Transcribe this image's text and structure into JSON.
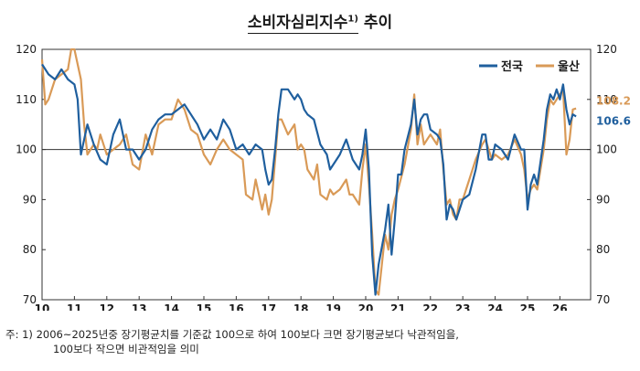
{
  "title": {
    "main": "소비자심리지수",
    "sup": "1)",
    "rest": "추이"
  },
  "footnote": {
    "line1": "주: 1) 2006~2025년중 장기평균치를 기준값 100으로 하여 100보다 크면 장기평균보다 낙관적임을,",
    "line2": "100보다 작으면 비관적임을 의미"
  },
  "chart_data": {
    "type": "line",
    "xlim": [
      2010,
      2026.5
    ],
    "ylim": [
      70,
      120
    ],
    "y_ticks": [
      70,
      80,
      90,
      100,
      110,
      120
    ],
    "x_ticks": [
      {
        "x": 2010,
        "label": "10"
      },
      {
        "x": 2011,
        "label": "11"
      },
      {
        "x": 2012,
        "label": "12"
      },
      {
        "x": 2013,
        "label": "13"
      },
      {
        "x": 2014,
        "label": "14"
      },
      {
        "x": 2015,
        "label": "15"
      },
      {
        "x": 2016,
        "label": "16"
      },
      {
        "x": 2017,
        "label": "17"
      },
      {
        "x": 2018,
        "label": "18"
      },
      {
        "x": 2019,
        "label": "19"
      },
      {
        "x": 2020,
        "label": "20"
      },
      {
        "x": 2021,
        "label": "21"
      },
      {
        "x": 2022,
        "label": "22"
      },
      {
        "x": 2023,
        "label": "23"
      },
      {
        "x": 2024,
        "label": "24"
      },
      {
        "x": 2025,
        "label": "25"
      },
      {
        "x": 2026,
        "label": "26"
      }
    ],
    "reference_line": 100,
    "legend_position": "top-right",
    "series": [
      {
        "name": "전국",
        "color": "#1f5f9e",
        "end_label": "106.6",
        "points": [
          [
            2010.0,
            117
          ],
          [
            2010.2,
            115
          ],
          [
            2010.4,
            114
          ],
          [
            2010.6,
            116
          ],
          [
            2010.8,
            114
          ],
          [
            2011.0,
            113
          ],
          [
            2011.1,
            110
          ],
          [
            2011.2,
            99
          ],
          [
            2011.4,
            105
          ],
          [
            2011.6,
            101
          ],
          [
            2011.8,
            98
          ],
          [
            2012.0,
            97
          ],
          [
            2012.2,
            103
          ],
          [
            2012.4,
            106
          ],
          [
            2012.6,
            100
          ],
          [
            2012.8,
            100
          ],
          [
            2013.0,
            98
          ],
          [
            2013.2,
            100
          ],
          [
            2013.4,
            104
          ],
          [
            2013.6,
            106
          ],
          [
            2013.8,
            107
          ],
          [
            2014.0,
            107
          ],
          [
            2014.2,
            108
          ],
          [
            2014.4,
            109
          ],
          [
            2014.6,
            107
          ],
          [
            2014.8,
            105
          ],
          [
            2015.0,
            102
          ],
          [
            2015.2,
            104
          ],
          [
            2015.4,
            102
          ],
          [
            2015.6,
            106
          ],
          [
            2015.8,
            104
          ],
          [
            2016.0,
            100
          ],
          [
            2016.2,
            101
          ],
          [
            2016.4,
            99
          ],
          [
            2016.6,
            101
          ],
          [
            2016.8,
            100
          ],
          [
            2016.9,
            96
          ],
          [
            2017.0,
            93
          ],
          [
            2017.1,
            94
          ],
          [
            2017.2,
            100
          ],
          [
            2017.3,
            107
          ],
          [
            2017.4,
            112
          ],
          [
            2017.6,
            112
          ],
          [
            2017.8,
            110
          ],
          [
            2017.9,
            111
          ],
          [
            2018.0,
            110
          ],
          [
            2018.1,
            108
          ],
          [
            2018.2,
            107
          ],
          [
            2018.4,
            106
          ],
          [
            2018.6,
            101
          ],
          [
            2018.8,
            99
          ],
          [
            2018.9,
            96
          ],
          [
            2019.0,
            97
          ],
          [
            2019.2,
            99
          ],
          [
            2019.4,
            102
          ],
          [
            2019.6,
            98
          ],
          [
            2019.8,
            96
          ],
          [
            2019.9,
            99
          ],
          [
            2020.0,
            104
          ],
          [
            2020.1,
            96
          ],
          [
            2020.2,
            79
          ],
          [
            2020.3,
            71
          ],
          [
            2020.4,
            77
          ],
          [
            2020.6,
            84
          ],
          [
            2020.7,
            89
          ],
          [
            2020.8,
            79
          ],
          [
            2020.9,
            86
          ],
          [
            2021.0,
            95
          ],
          [
            2021.1,
            95
          ],
          [
            2021.2,
            100
          ],
          [
            2021.4,
            105
          ],
          [
            2021.5,
            110
          ],
          [
            2021.6,
            103
          ],
          [
            2021.7,
            106
          ],
          [
            2021.8,
            107
          ],
          [
            2021.9,
            107
          ],
          [
            2022.0,
            104
          ],
          [
            2022.2,
            103
          ],
          [
            2022.3,
            102
          ],
          [
            2022.4,
            97
          ],
          [
            2022.5,
            86
          ],
          [
            2022.6,
            89
          ],
          [
            2022.7,
            88
          ],
          [
            2022.8,
            86
          ],
          [
            2022.9,
            88
          ],
          [
            2023.0,
            90
          ],
          [
            2023.2,
            91
          ],
          [
            2023.4,
            96
          ],
          [
            2023.6,
            103
          ],
          [
            2023.7,
            103
          ],
          [
            2023.8,
            98
          ],
          [
            2023.9,
            98
          ],
          [
            2024.0,
            101
          ],
          [
            2024.2,
            100
          ],
          [
            2024.4,
            98
          ],
          [
            2024.6,
            103
          ],
          [
            2024.8,
            100
          ],
          [
            2024.9,
            100
          ],
          [
            2025.0,
            88
          ],
          [
            2025.1,
            93
          ],
          [
            2025.2,
            95
          ],
          [
            2025.3,
            93
          ],
          [
            2025.5,
            102
          ],
          [
            2025.6,
            108
          ],
          [
            2025.7,
            111
          ],
          [
            2025.8,
            110
          ],
          [
            2025.9,
            112
          ],
          [
            2026.0,
            110
          ],
          [
            2026.1,
            113
          ],
          [
            2026.2,
            108
          ],
          [
            2026.3,
            105
          ],
          [
            2026.4,
            107
          ],
          [
            2026.5,
            106.6
          ]
        ]
      },
      {
        "name": "울산",
        "color": "#d99a57",
        "end_label": "108.2",
        "points": [
          [
            2010.0,
            118
          ],
          [
            2010.1,
            109
          ],
          [
            2010.2,
            110
          ],
          [
            2010.4,
            114
          ],
          [
            2010.6,
            115
          ],
          [
            2010.8,
            116
          ],
          [
            2010.9,
            120
          ],
          [
            2011.0,
            120
          ],
          [
            2011.2,
            114
          ],
          [
            2011.3,
            105
          ],
          [
            2011.4,
            99
          ],
          [
            2011.6,
            101
          ],
          [
            2011.7,
            100
          ],
          [
            2011.8,
            103
          ],
          [
            2012.0,
            99
          ],
          [
            2012.2,
            100
          ],
          [
            2012.4,
            101
          ],
          [
            2012.6,
            103
          ],
          [
            2012.8,
            97
          ],
          [
            2013.0,
            96
          ],
          [
            2013.2,
            103
          ],
          [
            2013.4,
            99
          ],
          [
            2013.6,
            105
          ],
          [
            2013.8,
            106
          ],
          [
            2014.0,
            106
          ],
          [
            2014.2,
            110
          ],
          [
            2014.4,
            108
          ],
          [
            2014.6,
            104
          ],
          [
            2014.8,
            103
          ],
          [
            2015.0,
            99
          ],
          [
            2015.2,
            97
          ],
          [
            2015.4,
            100
          ],
          [
            2015.6,
            102
          ],
          [
            2015.8,
            100
          ],
          [
            2016.0,
            99
          ],
          [
            2016.2,
            98
          ],
          [
            2016.3,
            91
          ],
          [
            2016.5,
            90
          ],
          [
            2016.6,
            94
          ],
          [
            2016.7,
            91
          ],
          [
            2016.8,
            88
          ],
          [
            2016.9,
            91
          ],
          [
            2017.0,
            87
          ],
          [
            2017.1,
            90
          ],
          [
            2017.2,
            98
          ],
          [
            2017.3,
            106
          ],
          [
            2017.4,
            106
          ],
          [
            2017.6,
            103
          ],
          [
            2017.8,
            105
          ],
          [
            2017.9,
            100
          ],
          [
            2018.0,
            101
          ],
          [
            2018.1,
            100
          ],
          [
            2018.2,
            96
          ],
          [
            2018.4,
            94
          ],
          [
            2018.5,
            97
          ],
          [
            2018.6,
            91
          ],
          [
            2018.8,
            90
          ],
          [
            2018.9,
            92
          ],
          [
            2019.0,
            91
          ],
          [
            2019.2,
            92
          ],
          [
            2019.4,
            94
          ],
          [
            2019.5,
            91
          ],
          [
            2019.6,
            91
          ],
          [
            2019.8,
            89
          ],
          [
            2019.9,
            96
          ],
          [
            2020.0,
            101
          ],
          [
            2020.1,
            93
          ],
          [
            2020.2,
            83
          ],
          [
            2020.3,
            72
          ],
          [
            2020.4,
            71
          ],
          [
            2020.6,
            83
          ],
          [
            2020.7,
            80
          ],
          [
            2020.8,
            87
          ],
          [
            2020.9,
            90
          ],
          [
            2021.0,
            92
          ],
          [
            2021.2,
            97
          ],
          [
            2021.4,
            104
          ],
          [
            2021.5,
            111
          ],
          [
            2021.6,
            101
          ],
          [
            2021.7,
            105
          ],
          [
            2021.8,
            101
          ],
          [
            2021.9,
            102
          ],
          [
            2022.0,
            103
          ],
          [
            2022.2,
            101
          ],
          [
            2022.3,
            104
          ],
          [
            2022.4,
            96
          ],
          [
            2022.5,
            89
          ],
          [
            2022.6,
            90
          ],
          [
            2022.7,
            87
          ],
          [
            2022.8,
            86
          ],
          [
            2022.9,
            90
          ],
          [
            2023.0,
            90
          ],
          [
            2023.2,
            94
          ],
          [
            2023.4,
            98
          ],
          [
            2023.6,
            101
          ],
          [
            2023.7,
            102
          ],
          [
            2023.8,
            100
          ],
          [
            2023.9,
            98
          ],
          [
            2024.0,
            99
          ],
          [
            2024.2,
            98
          ],
          [
            2024.4,
            99
          ],
          [
            2024.6,
            102
          ],
          [
            2024.8,
            99
          ],
          [
            2024.9,
            96
          ],
          [
            2025.0,
            90
          ],
          [
            2025.1,
            92
          ],
          [
            2025.2,
            93
          ],
          [
            2025.3,
            92
          ],
          [
            2025.5,
            100
          ],
          [
            2025.6,
            106
          ],
          [
            2025.7,
            110
          ],
          [
            2025.8,
            109
          ],
          [
            2025.9,
            110
          ],
          [
            2026.0,
            111
          ],
          [
            2026.1,
            112
          ],
          [
            2026.2,
            99
          ],
          [
            2026.3,
            102
          ],
          [
            2026.4,
            108
          ],
          [
            2026.5,
            108.2
          ]
        ]
      }
    ]
  }
}
